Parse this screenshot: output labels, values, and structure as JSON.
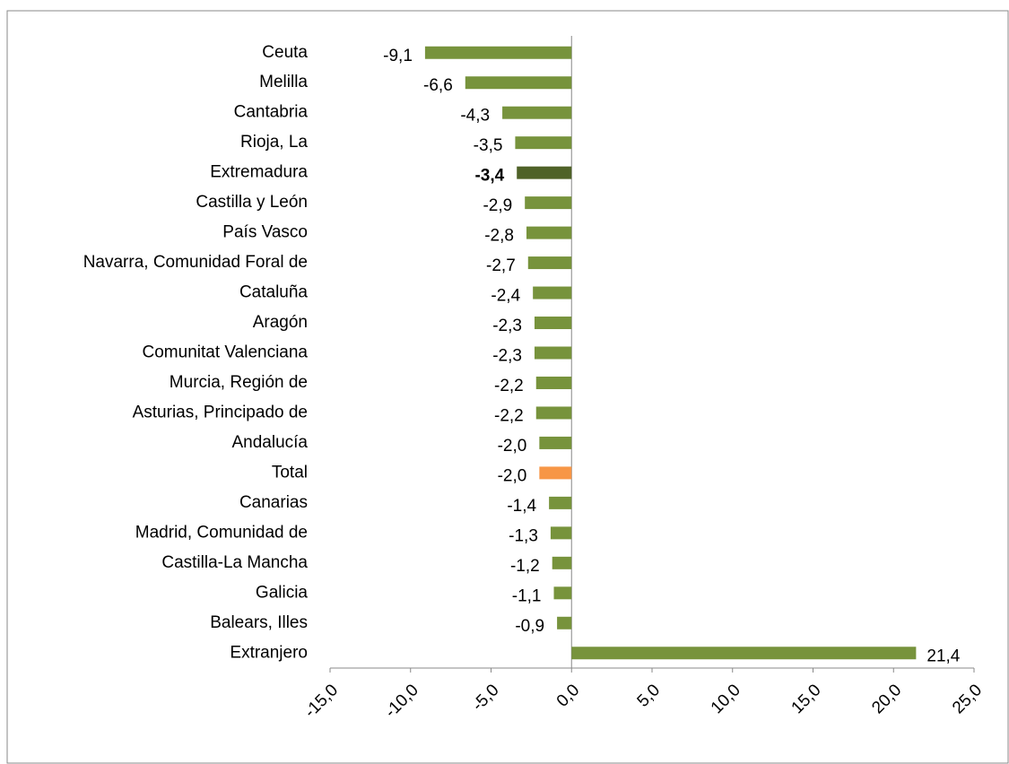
{
  "chart_data": {
    "type": "hbar",
    "categories": [
      "Ceuta",
      "Melilla",
      "Cantabria",
      "Rioja, La",
      "Extremadura",
      "Castilla y León",
      "País Vasco",
      "Navarra, Comunidad  Foral de",
      "Cataluña",
      "Aragón",
      "Comunitat Valenciana",
      "Murcia, Región de",
      "Asturias, Principado de",
      "Andalucía",
      "Total",
      "Canarias",
      "Madrid, Comunidad de",
      "Castilla-La Mancha",
      "Galicia",
      "Balears, Illes",
      "Extranjero"
    ],
    "values": [
      -9.1,
      -6.6,
      -4.3,
      -3.5,
      -3.4,
      -2.9,
      -2.8,
      -2.7,
      -2.4,
      -2.3,
      -2.3,
      -2.2,
      -2.2,
      -2.0,
      -2.0,
      -1.4,
      -1.3,
      -1.2,
      -1.1,
      -0.9,
      21.4
    ],
    "value_labels": [
      "-9,1",
      "-6,6",
      "-4,3",
      "-3,5",
      "-3,4",
      "-2,9",
      "-2,8",
      "-2,7",
      "-2,4",
      "-2,3",
      "-2,3",
      "-2,2",
      "-2,2",
      "-2,0",
      "-2,0",
      "-1,4",
      "-1,3",
      "-1,2",
      "-1,1",
      "-0,9",
      "21,4"
    ],
    "colors": [
      "#77933c",
      "#77933c",
      "#77933c",
      "#77933c",
      "#4f6228",
      "#77933c",
      "#77933c",
      "#77933c",
      "#77933c",
      "#77933c",
      "#77933c",
      "#77933c",
      "#77933c",
      "#77933c",
      "#f79646",
      "#77933c",
      "#77933c",
      "#77933c",
      "#77933c",
      "#77933c",
      "#77933c"
    ],
    "bold_categories": [
      "Extremadura"
    ],
    "xlim": [
      -15,
      25
    ],
    "xticks": [
      {
        "value": -15,
        "label": "-15,0"
      },
      {
        "value": -10,
        "label": "-10,0"
      },
      {
        "value": -5,
        "label": "-5,0"
      },
      {
        "value": 0,
        "label": "0,0"
      },
      {
        "value": 5,
        "label": "5,0"
      },
      {
        "value": 10,
        "label": "10,0"
      },
      {
        "value": 15,
        "label": "15,0"
      },
      {
        "value": 20,
        "label": "20,0"
      },
      {
        "value": 25,
        "label": "25,0"
      }
    ],
    "grid": false
  }
}
